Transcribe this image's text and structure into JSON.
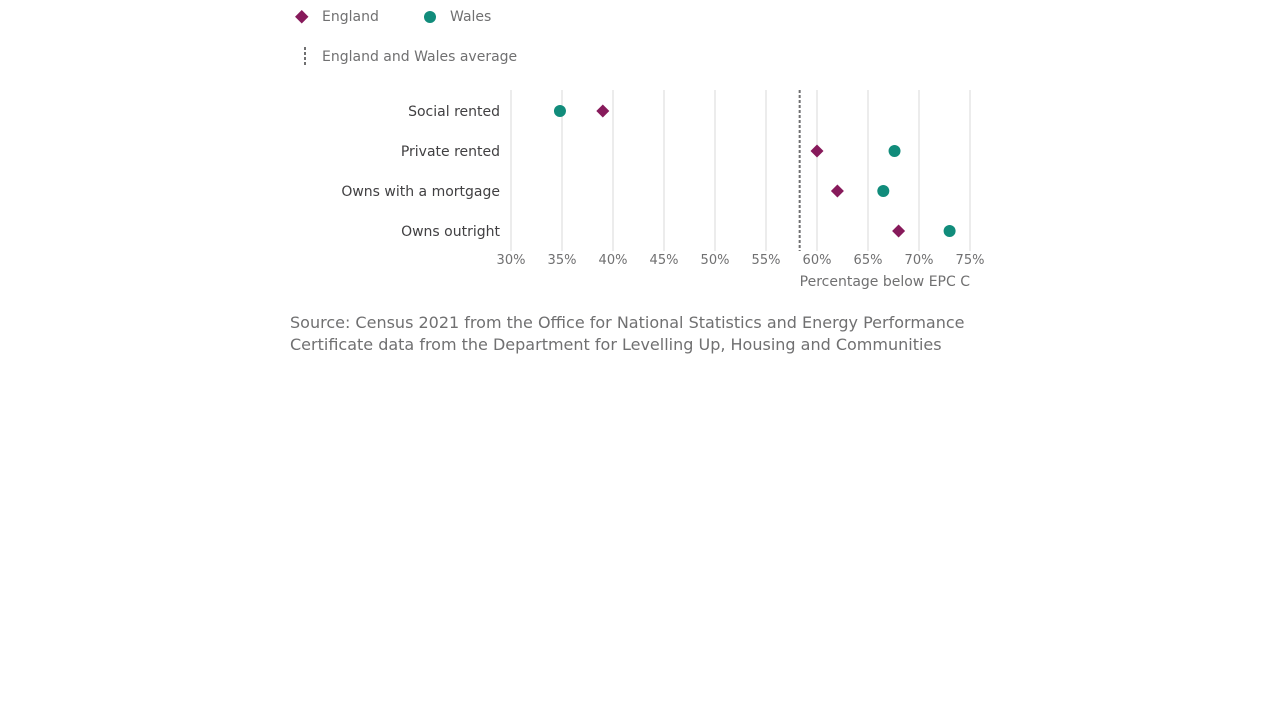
{
  "legend": {
    "england_label": "England",
    "wales_label": "Wales",
    "average_label": "England and Wales average"
  },
  "colors": {
    "england": "#871a5b",
    "wales": "#118c7b",
    "average": "#707071",
    "grid": "#d9d9d9",
    "axis_text": "#707071",
    "category_text": "#414042"
  },
  "chart_data": {
    "type": "scatter",
    "categories": [
      "Social rented",
      "Private rented",
      "Owns with a mortgage",
      "Owns outright"
    ],
    "series": [
      {
        "name": "England",
        "marker": "diamond",
        "values": [
          39,
          60,
          62,
          68
        ]
      },
      {
        "name": "Wales",
        "marker": "circle",
        "values": [
          34.8,
          67.6,
          66.5,
          73
        ]
      }
    ],
    "reference_line": {
      "name": "England and Wales average",
      "value": 58.3
    },
    "xlim": [
      30,
      75
    ],
    "xticks": [
      30,
      35,
      40,
      45,
      50,
      55,
      60,
      65,
      70,
      75
    ],
    "xtick_labels": [
      "30%",
      "35%",
      "40%",
      "45%",
      "50%",
      "55%",
      "60%",
      "65%",
      "70%",
      "75%"
    ],
    "xlabel": "Percentage below EPC C",
    "grid": true,
    "legend_position": "top-left"
  },
  "source_text": "Source: Census 2021 from the Office for National Statistics and Energy Performance Certificate data from the Department for Levelling Up, Housing and Communities"
}
